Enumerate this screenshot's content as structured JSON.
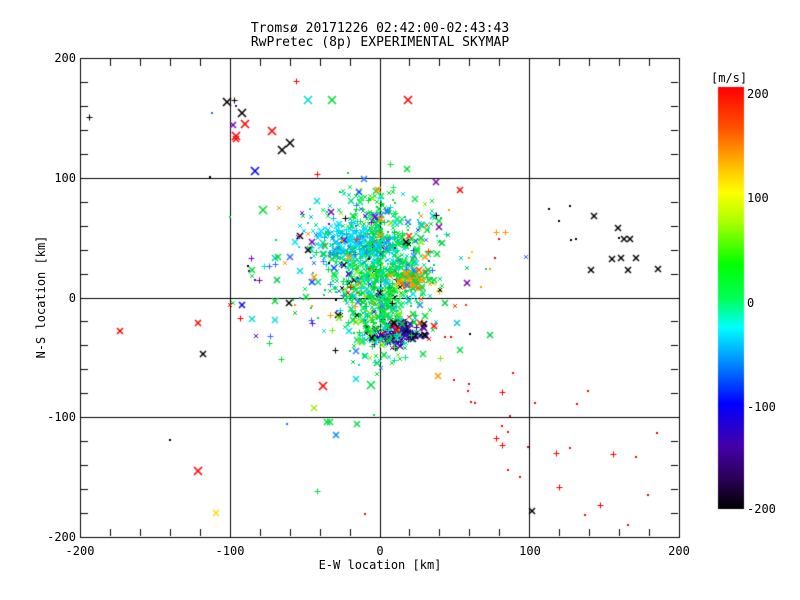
{
  "app": {
    "background": "#ffffff",
    "text_color": "#000000"
  },
  "chart_data": {
    "type": "scatter",
    "title": "Tromsø 20171226 02:42:00-02:43:43",
    "subtitle": "RwPretec (8p) EXPERIMENTAL SKYMAP",
    "xlabel": "E-W location [km]",
    "ylabel": "N-S location [km]",
    "xlim": [
      -200,
      200
    ],
    "ylim": [
      -200,
      200
    ],
    "x_ticks": [
      -200,
      -100,
      0,
      100,
      200
    ],
    "y_ticks": [
      200,
      100,
      0,
      -100,
      -200
    ],
    "x_tick_labels": [
      "-200",
      "-100",
      "0",
      "100",
      "200"
    ],
    "y_tick_labels": [
      "200",
      "100",
      "0",
      "-100",
      "-200"
    ],
    "minor_tick_step_km": 20,
    "grid": {
      "x": [
        -100,
        0,
        100
      ],
      "y": [
        -100,
        0,
        100
      ],
      "color": "#000000",
      "style": "solid"
    },
    "colorbar": {
      "label": "[m/s]",
      "ticks": [
        200,
        100,
        0,
        -100,
        -200
      ],
      "tick_labels": [
        "200",
        "100",
        "0",
        "-100",
        "-200"
      ],
      "range": [
        -200,
        200
      ],
      "stops": [
        [
          0,
          "#ff0000"
        ],
        [
          0.1,
          "#ff5500"
        ],
        [
          0.2,
          "#ffcc00"
        ],
        [
          0.25,
          "#ffff00"
        ],
        [
          0.32,
          "#aaff00"
        ],
        [
          0.42,
          "#00ff00"
        ],
        [
          0.5,
          "#00ff55"
        ],
        [
          0.57,
          "#00ffff"
        ],
        [
          0.68,
          "#0066ff"
        ],
        [
          0.75,
          "#0000ff"
        ],
        [
          0.85,
          "#4400aa"
        ],
        [
          0.93,
          "#2a0055"
        ],
        [
          1,
          "#000000"
        ]
      ]
    },
    "clusters": [
      {
        "name": "main-echo-cloud",
        "cx": 0,
        "cy": 27,
        "sx": 16,
        "sy": 30,
        "count": 780,
        "colors": [
          [
            "#00dd33",
            0.38
          ],
          [
            "#00ee55",
            0.18
          ],
          [
            "#00dd88",
            0.12
          ],
          [
            "#00dde0",
            0.12
          ],
          [
            "#77ee00",
            0.08
          ],
          [
            "#2b7bff",
            0.06
          ],
          [
            "#0044ff",
            0.03
          ],
          [
            "#000000",
            0.03
          ]
        ],
        "markers": [
          [
            "x-s",
            0.5
          ],
          [
            "x-m",
            0.2
          ],
          [
            "plus",
            0.15
          ],
          [
            "dot",
            0.15
          ]
        ]
      },
      {
        "name": "cyan-band-nw",
        "cx": -20,
        "cy": 48,
        "sx": 14,
        "sy": 9,
        "count": 170,
        "colors": [
          [
            "#00e0ff",
            0.45
          ],
          [
            "#00bbff",
            0.2
          ],
          [
            "#3377ff",
            0.15
          ],
          [
            "#00dd88",
            0.2
          ]
        ],
        "markers": [
          [
            "x-s",
            0.55
          ],
          [
            "x-m",
            0.25
          ],
          [
            "plus",
            0.2
          ]
        ]
      },
      {
        "name": "orange-spot-east",
        "cx": 23,
        "cy": 13,
        "sx": 6,
        "sy": 5,
        "count": 70,
        "colors": [
          [
            "#ff9900",
            0.45
          ],
          [
            "#ff5500",
            0.2
          ],
          [
            "#ffdd00",
            0.15
          ],
          [
            "#00dd44",
            0.2
          ]
        ],
        "markers": [
          [
            "x-s",
            0.5
          ],
          [
            "x-m",
            0.3
          ],
          [
            "plus",
            0.2
          ]
        ]
      },
      {
        "name": "dark-blob-south",
        "cx": 13,
        "cy": -30,
        "sx": 8,
        "sy": 5,
        "count": 130,
        "colors": [
          [
            "#1a0d80",
            0.35
          ],
          [
            "#4b0099",
            0.3
          ],
          [
            "#000000",
            0.15
          ],
          [
            "#2222cc",
            0.1
          ],
          [
            "#ff0000",
            0.1
          ]
        ],
        "markers": [
          [
            "x-s",
            0.45
          ],
          [
            "x-m",
            0.35
          ],
          [
            "plus",
            0.2
          ]
        ]
      },
      {
        "name": "green-tail-south",
        "cx": 1,
        "cy": -18,
        "sx": 9,
        "sy": 18,
        "count": 160,
        "colors": [
          [
            "#00dd33",
            0.5
          ],
          [
            "#00ddaa",
            0.2
          ],
          [
            "#00dde0",
            0.15
          ],
          [
            "#77ee00",
            0.15
          ]
        ],
        "markers": [
          [
            "x-s",
            0.5
          ],
          [
            "x-m",
            0.2
          ],
          [
            "plus",
            0.15
          ],
          [
            "dot",
            0.15
          ]
        ]
      },
      {
        "name": "sparse-halo",
        "cx": -2,
        "cy": 20,
        "sx": 34,
        "sy": 34,
        "count": 130,
        "colors": [
          [
            "#00cc44",
            0.3
          ],
          [
            "#00cccc",
            0.15
          ],
          [
            "#3366ff",
            0.12
          ],
          [
            "#ff3300",
            0.1
          ],
          [
            "#000000",
            0.08
          ],
          [
            "#7700bb",
            0.1
          ],
          [
            "#ff9900",
            0.15
          ]
        ],
        "markers": [
          [
            "x-s",
            0.4
          ],
          [
            "x-m",
            0.3
          ],
          [
            "plus",
            0.15
          ],
          [
            "dot",
            0.15
          ]
        ]
      }
    ],
    "outlier_points": [
      [
        -194,
        151,
        "#000000",
        "plus"
      ],
      [
        -102,
        163,
        "#000000",
        "x-l"
      ],
      [
        -97,
        165,
        "#000000",
        "plus"
      ],
      [
        -96,
        160,
        "#5500aa",
        "dot"
      ],
      [
        -92,
        154,
        "#000000",
        "x-l"
      ],
      [
        -112,
        154,
        "#3366ff",
        "dot"
      ],
      [
        -98,
        144,
        "#7700cc",
        "x-m"
      ],
      [
        -90,
        145,
        "#ff0000",
        "x-l"
      ],
      [
        -96,
        135,
        "#ff0000",
        "x-l"
      ],
      [
        -96,
        132,
        "#ff0000",
        "x-m"
      ],
      [
        -72,
        139,
        "#ff0000",
        "x-l"
      ],
      [
        -83,
        106,
        "#0000ff",
        "x-l"
      ],
      [
        -113,
        101,
        "#000000",
        "dot"
      ],
      [
        -78,
        73,
        "#00dd33",
        "x-l"
      ],
      [
        -56,
        181,
        "#ff0000",
        "plus"
      ],
      [
        -48,
        165,
        "#00dde0",
        "x-l"
      ],
      [
        -32,
        165,
        "#00dd33",
        "x-l"
      ],
      [
        19,
        165,
        "#ff0000",
        "x-l"
      ],
      [
        -60,
        129,
        "#000000",
        "x-l"
      ],
      [
        -65,
        123,
        "#000000",
        "x-l"
      ],
      [
        -42,
        103,
        "#ff0000",
        "plus"
      ],
      [
        54,
        90,
        "#ff0000",
        "x-m"
      ],
      [
        38,
        69,
        "#000000",
        "plus"
      ],
      [
        -1,
        90,
        "#ff9900",
        "x-m"
      ],
      [
        0,
        83,
        "#00dde0",
        "plus"
      ],
      [
        19,
        63,
        "#2b7bff",
        "x-m"
      ],
      [
        18,
        46,
        "#000000",
        "x-m"
      ],
      [
        -3,
        67,
        "#7700cc",
        "x-m"
      ],
      [
        113,
        74,
        "#000000",
        "dot"
      ],
      [
        127,
        76,
        "#000000",
        "dot"
      ],
      [
        120,
        64,
        "#000000",
        "dot"
      ],
      [
        143,
        68,
        "#000000",
        "x-m"
      ],
      [
        159,
        58,
        "#000000",
        "x-m"
      ],
      [
        128,
        48,
        "#000000",
        "dot"
      ],
      [
        131,
        49,
        "#000000",
        "dot"
      ],
      [
        160,
        50,
        "#000000",
        "dot"
      ],
      [
        163,
        49,
        "#000000",
        "x-m"
      ],
      [
        167,
        49,
        "#000000",
        "x-m"
      ],
      [
        155,
        32,
        "#000000",
        "x-m"
      ],
      [
        161,
        33,
        "#000000",
        "x-m"
      ],
      [
        171,
        33,
        "#000000",
        "x-m"
      ],
      [
        141,
        23,
        "#000000",
        "x-m"
      ],
      [
        166,
        23,
        "#000000",
        "x-m"
      ],
      [
        186,
        24,
        "#000000",
        "x-m"
      ],
      [
        78,
        55,
        "#ff9900",
        "plus"
      ],
      [
        84,
        55,
        "#ff9900",
        "plus"
      ],
      [
        80,
        49,
        "#ff0000",
        "dot"
      ],
      [
        77,
        33,
        "#ff0000",
        "dot"
      ],
      [
        71,
        24,
        "#00dd44",
        "dot"
      ],
      [
        74,
        24,
        "#ff9900",
        "dot"
      ],
      [
        68,
        9,
        "#ff9900",
        "dot"
      ],
      [
        62,
        38,
        "#ffcc00",
        "dot"
      ],
      [
        60,
        33,
        "#ff9900",
        "dot"
      ],
      [
        -100,
        67,
        "#00dd44",
        "dot"
      ],
      [
        -69,
        48,
        "#00dd44",
        "dot"
      ],
      [
        -86,
        33,
        "#7700cc",
        "plus"
      ],
      [
        -88,
        26,
        "#000000",
        "dot"
      ],
      [
        -87,
        22,
        "#5500aa",
        "dot"
      ],
      [
        -83,
        15,
        "#5500aa",
        "dot"
      ],
      [
        -68,
        34,
        "#00dd33",
        "x-m"
      ],
      [
        -85,
        23,
        "#00dd33",
        "x-m"
      ],
      [
        -85,
        18,
        "#00dd33",
        "x-s"
      ],
      [
        -77,
        26,
        "#00dde0",
        "plus"
      ],
      [
        -74,
        26,
        "#3366ff",
        "plus"
      ],
      [
        -70,
        28,
        "#3366ff",
        "plus"
      ],
      [
        -45,
        46,
        "#7700cc",
        "x-m"
      ],
      [
        -54,
        42,
        "#00dde0",
        "dot"
      ],
      [
        -48,
        40,
        "#000000",
        "x-m"
      ],
      [
        -46,
        33,
        "#3366ff",
        "dot"
      ],
      [
        -53,
        22,
        "#00dde0",
        "x-m"
      ],
      [
        -44,
        17,
        "#ff9900",
        "x-m"
      ],
      [
        -20,
        9,
        "#ff0000",
        "plus"
      ],
      [
        -21,
        4,
        "#ff0000",
        "x-s"
      ],
      [
        -100,
        -6,
        "#ff0000",
        "x-s"
      ],
      [
        -98,
        -5,
        "#00dd44",
        "x-s"
      ],
      [
        -92,
        -6,
        "#0000ff",
        "x-m"
      ],
      [
        -93,
        -17,
        "#ff0000",
        "plus"
      ],
      [
        -85,
        -18,
        "#00dde0",
        "x-m"
      ],
      [
        -70,
        -19,
        "#00dde0",
        "x-m"
      ],
      [
        -70,
        -3,
        "#00dd33",
        "x-m"
      ],
      [
        -58,
        -2,
        "#00dd33",
        "dot"
      ],
      [
        -46,
        -9,
        "#00dd33",
        "dot"
      ],
      [
        -41,
        -17,
        "#00dd33",
        "dot"
      ],
      [
        -73,
        -32,
        "#3366ff",
        "plus"
      ],
      [
        -74,
        -38,
        "#00dd33",
        "plus"
      ],
      [
        -66,
        -51,
        "#00dd33",
        "plus"
      ],
      [
        -45,
        -21,
        "#7700cc",
        "plus"
      ],
      [
        -46,
        -19,
        "#3366ff",
        "plus"
      ],
      [
        -5,
        -34,
        "#000000",
        "x-m"
      ],
      [
        10,
        -21,
        "#000000",
        "x-m"
      ],
      [
        30,
        -22,
        "#000000",
        "x-m"
      ],
      [
        12,
        -27,
        "#ff0000",
        "x-m"
      ],
      [
        44,
        -33,
        "#ff0000",
        "dot"
      ],
      [
        48,
        -33,
        "#ff0000",
        "dot"
      ],
      [
        54,
        -44,
        "#00dd44",
        "x-m"
      ],
      [
        36,
        -27,
        "#00dd44",
        "x-s"
      ],
      [
        29,
        -47,
        "#00dd44",
        "x-m"
      ],
      [
        -173,
        -28,
        "#ff0000",
        "x-m"
      ],
      [
        -121,
        -21,
        "#ff0000",
        "x-m"
      ],
      [
        -118,
        -47,
        "#000000",
        "x-m"
      ],
      [
        -140,
        -119,
        "#000000",
        "dot"
      ],
      [
        -62,
        -106,
        "#3366ff",
        "dot"
      ],
      [
        -121,
        -145,
        "#ff0000",
        "x-l"
      ],
      [
        -109,
        -180,
        "#ffdd00",
        "x-m"
      ],
      [
        -38,
        -74,
        "#ff0000",
        "x-l"
      ],
      [
        -6,
        -73,
        "#00dd44",
        "x-l"
      ],
      [
        -16,
        -68,
        "#00dde0",
        "x-m"
      ],
      [
        -44,
        -92,
        "#aaee00",
        "x-m"
      ],
      [
        -35,
        -104,
        "#00dd44",
        "x-m"
      ],
      [
        -33,
        -104,
        "#00dd44",
        "x-m"
      ],
      [
        -15,
        -106,
        "#00dd44",
        "x-m"
      ],
      [
        -4,
        -98,
        "#00dd44",
        "dot"
      ],
      [
        -29,
        -115,
        "#0088ff",
        "x-m"
      ],
      [
        -42,
        -162,
        "#00dd44",
        "plus"
      ],
      [
        -10,
        -181,
        "#ff0000",
        "dot"
      ],
      [
        50,
        -69,
        "#ff0000",
        "dot"
      ],
      [
        60,
        -72,
        "#ff0000",
        "dot"
      ],
      [
        59,
        -78,
        "#ff0000",
        "dot"
      ],
      [
        61,
        -87,
        "#ff0000",
        "dot"
      ],
      [
        64,
        -88,
        "#ff0000",
        "dot"
      ],
      [
        78,
        -117,
        "#ff0000",
        "plus"
      ],
      [
        89,
        -63,
        "#ff0000",
        "dot"
      ],
      [
        82,
        -79,
        "#ff0000",
        "plus"
      ],
      [
        104,
        -88,
        "#ff0000",
        "dot"
      ],
      [
        139,
        -78,
        "#ff0000",
        "dot"
      ],
      [
        132,
        -89,
        "#ff0000",
        "dot"
      ],
      [
        87,
        -99,
        "#ff0000",
        "dot"
      ],
      [
        82,
        -107,
        "#ff0000",
        "dot"
      ],
      [
        86,
        -112,
        "#ff0000",
        "dot"
      ],
      [
        82,
        -123,
        "#ff0000",
        "plus"
      ],
      [
        99,
        -125,
        "#ff0000",
        "dot"
      ],
      [
        118,
        -130,
        "#ff0000",
        "plus"
      ],
      [
        127,
        -126,
        "#ff0000",
        "dot"
      ],
      [
        156,
        -131,
        "#ff0000",
        "plus"
      ],
      [
        171,
        -133,
        "#ff0000",
        "dot"
      ],
      [
        185,
        -113,
        "#ff0000",
        "dot"
      ],
      [
        86,
        -144,
        "#ff0000",
        "dot"
      ],
      [
        94,
        -150,
        "#ff0000",
        "dot"
      ],
      [
        120,
        -158,
        "#ff0000",
        "plus"
      ],
      [
        179,
        -165,
        "#ff0000",
        "dot"
      ],
      [
        147,
        -173,
        "#ff0000",
        "plus"
      ],
      [
        137,
        -182,
        "#ff0000",
        "dot"
      ],
      [
        166,
        -190,
        "#ff0000",
        "dot"
      ],
      [
        102,
        -178,
        "#000000",
        "x-m"
      ]
    ]
  }
}
